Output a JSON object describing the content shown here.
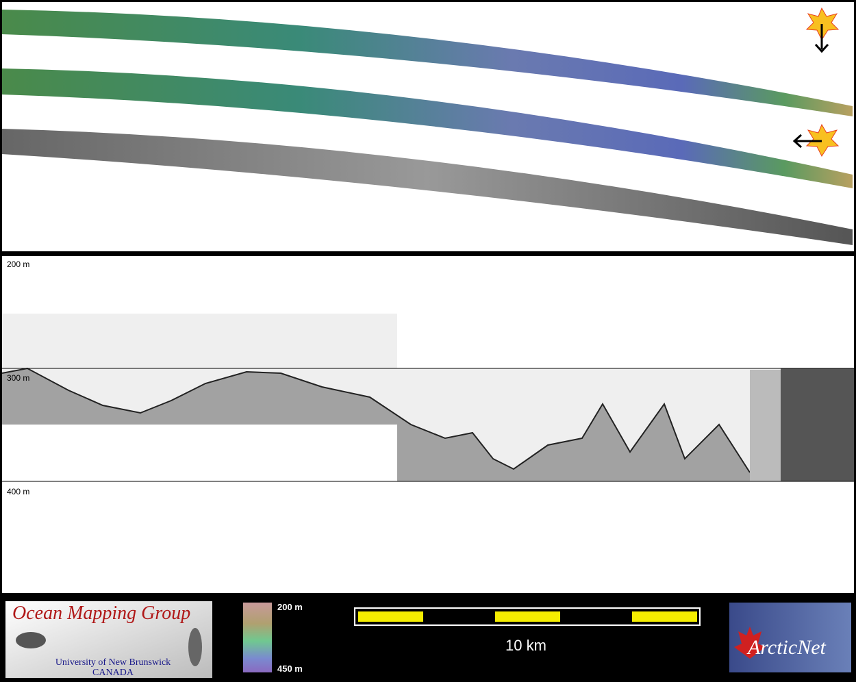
{
  "profile": {
    "depth_labels": [
      "200 m",
      "300 m",
      "400 m"
    ]
  },
  "footer": {
    "logo_title": "Ocean Mapping Group",
    "logo_university": "University of New Brunswick",
    "logo_country": "CANADA",
    "colorbar": {
      "top_label": "200 m",
      "bottom_label": "450 m"
    },
    "scale_bar_label": "10 km",
    "partner_logo": "ArcticNet"
  }
}
